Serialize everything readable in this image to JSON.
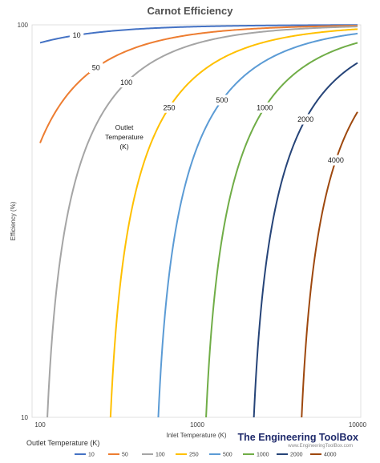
{
  "chart_data": {
    "type": "line",
    "title": "Carnot Efficiency",
    "xlabel": "Inlet Temperature (K)",
    "ylabel": "Efficiency (%)",
    "x_scale": "log",
    "y_scale": "log",
    "xlim": [
      100,
      10000
    ],
    "ylim": [
      10,
      100
    ],
    "x_ticks": [
      "100",
      "1000",
      "10000"
    ],
    "y_ticks": [
      "100",
      "10"
    ],
    "annotation": [
      "Outlet",
      "Temperature",
      "(K)"
    ],
    "legend_title": "Outlet Temperature (K)",
    "legend_position": "bottom",
    "series": [
      {
        "name": "10",
        "outlet_temperature": 10,
        "color": "#4472C4"
      },
      {
        "name": "50",
        "outlet_temperature": 50,
        "color": "#ED7D31"
      },
      {
        "name": "100",
        "outlet_temperature": 100,
        "color": "#A5A5A5"
      },
      {
        "name": "250",
        "outlet_temperature": 250,
        "color": "#FFC000"
      },
      {
        "name": "500",
        "outlet_temperature": 500,
        "color": "#5B9BD5"
      },
      {
        "name": "1000",
        "outlet_temperature": 1000,
        "color": "#70AD47"
      },
      {
        "name": "2000",
        "outlet_temperature": 2000,
        "color": "#264478"
      },
      {
        "name": "4000",
        "outlet_temperature": 4000,
        "color": "#9E480E"
      }
    ]
  },
  "watermark": {
    "title": "The Engineering ToolBox",
    "url": "www.EngineeringToolBox.com"
  }
}
